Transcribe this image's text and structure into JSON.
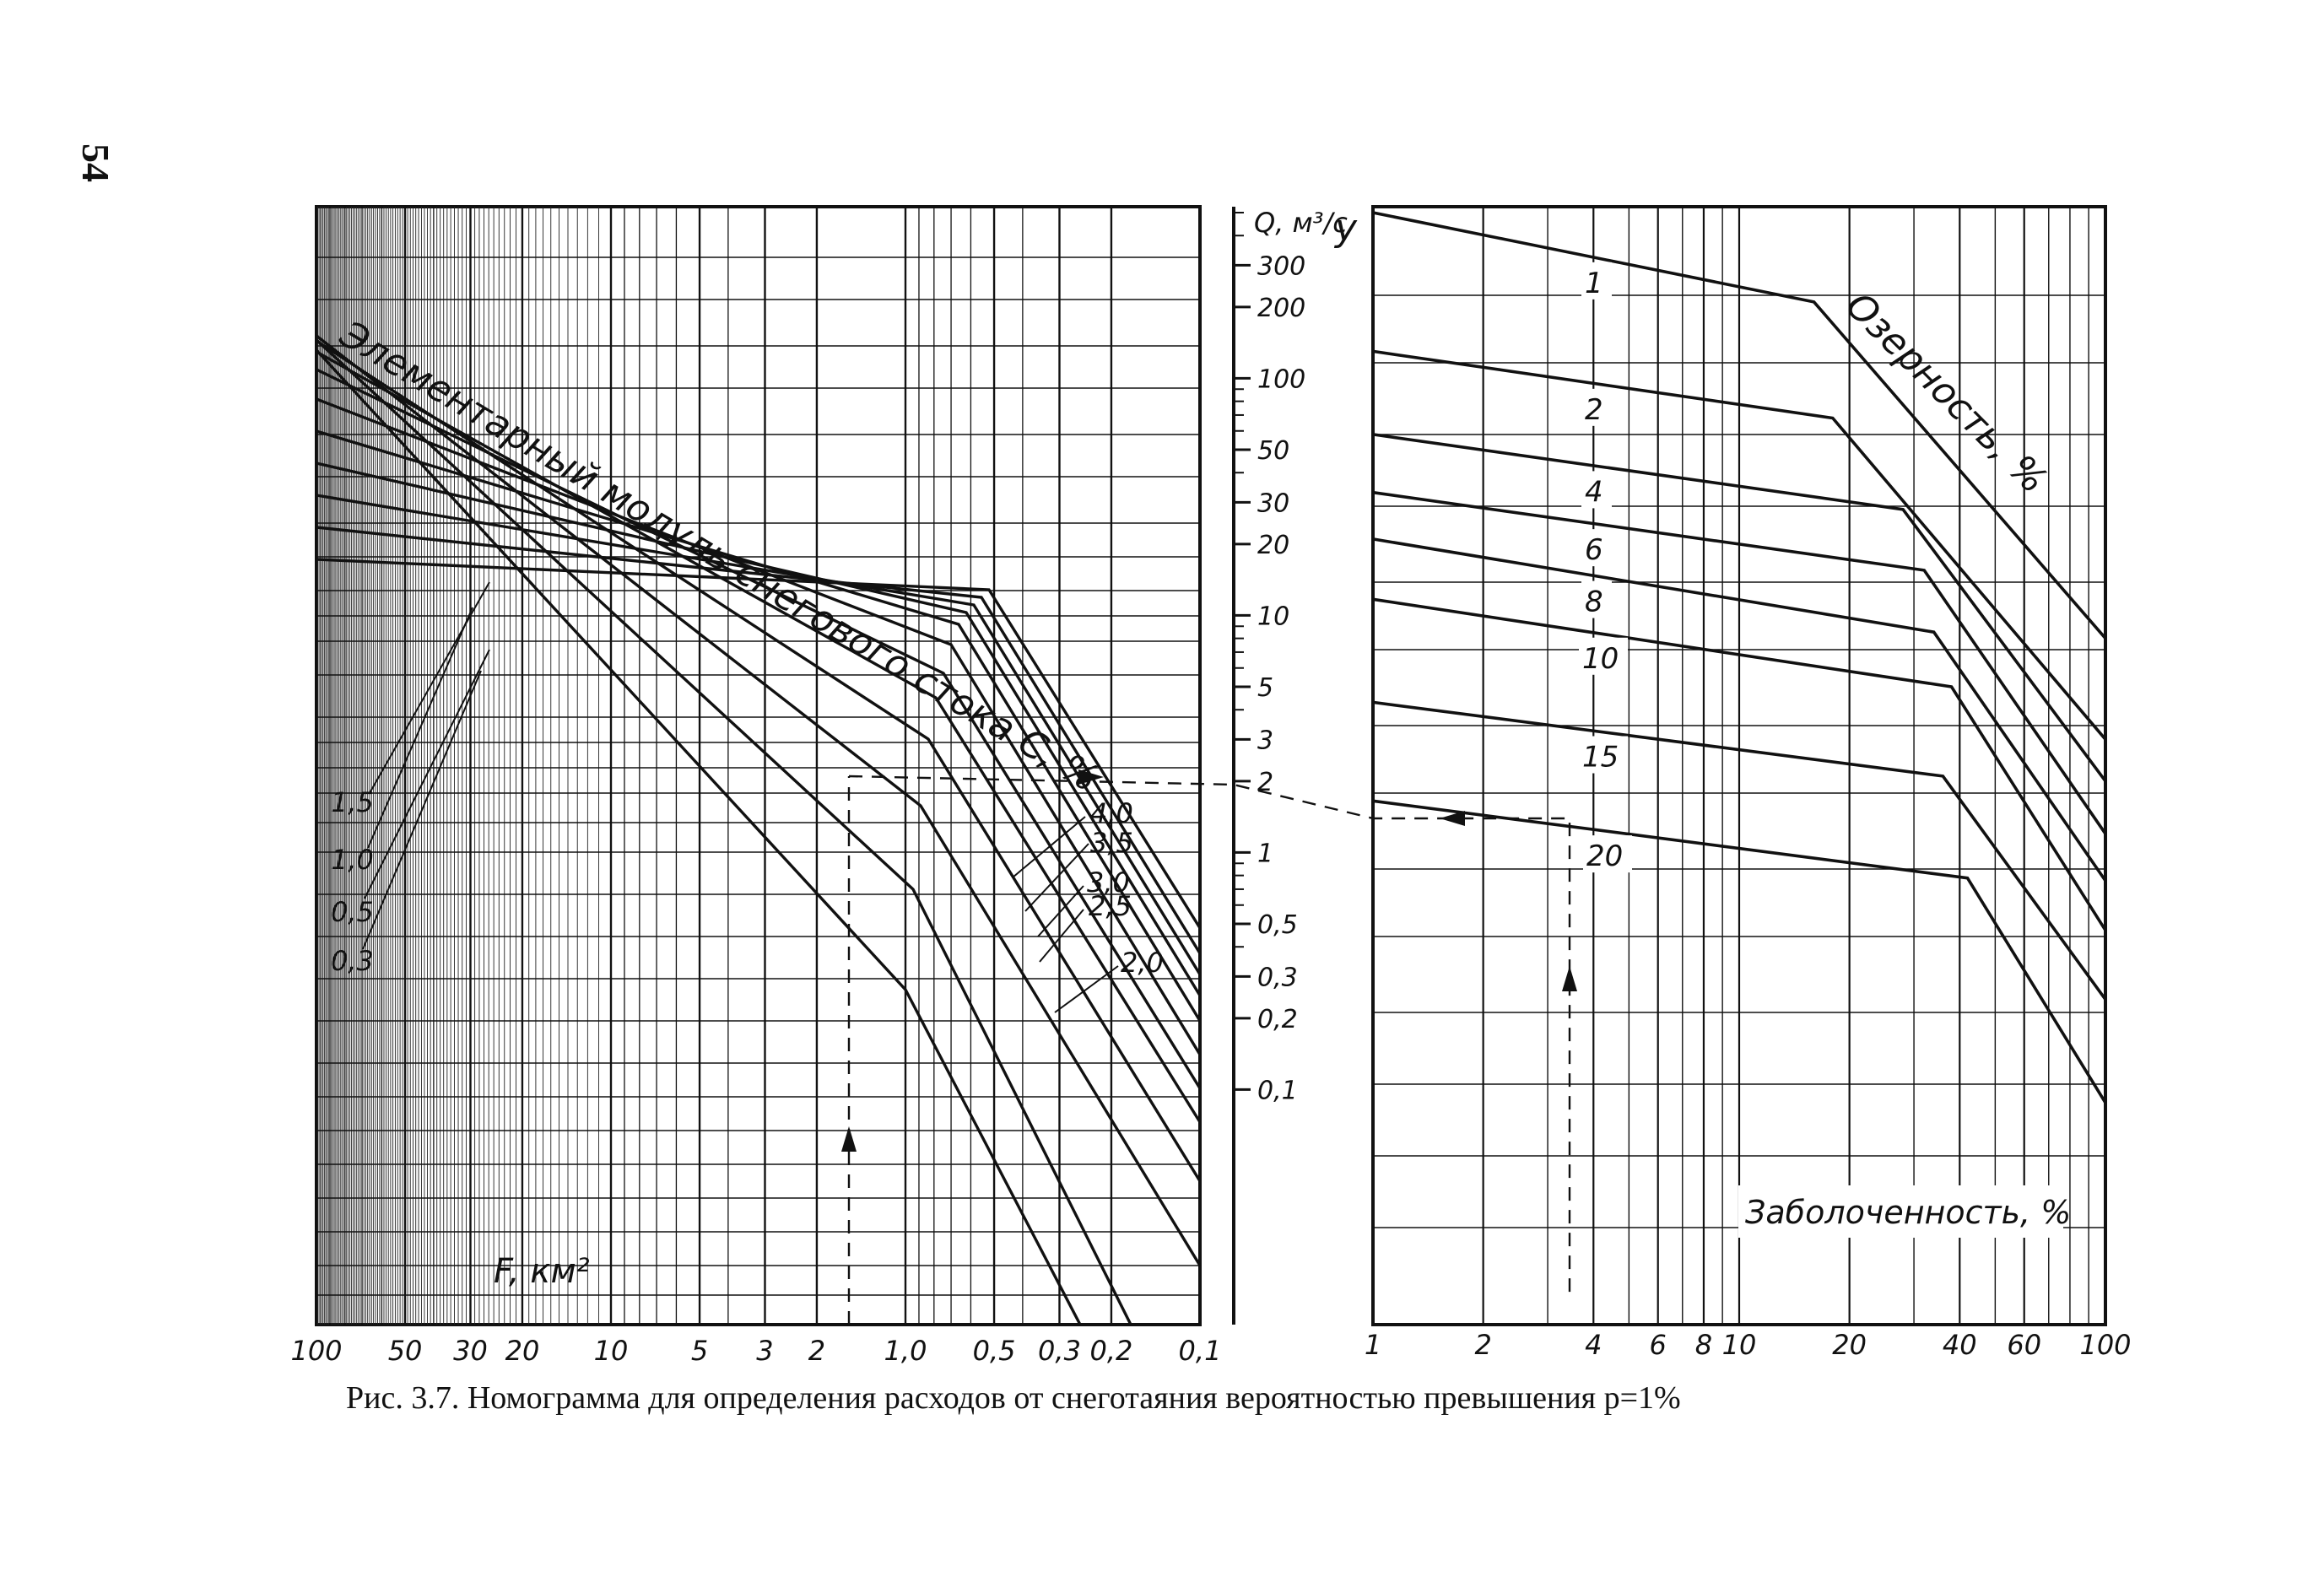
{
  "page_number": "54",
  "caption": "Рис. 3.7. Номограмма для определения расходов от снеготаяния вероятностью превышения p=1%",
  "chart_data": [
    {
      "type": "line",
      "title": "",
      "xlabel": "F, км²",
      "ylabel": "",
      "x_scale": "log",
      "x_reversed": true,
      "xlim": [
        100,
        0.1
      ],
      "x_tick_labels": [
        "100",
        "50",
        "30",
        "20",
        "10",
        "5",
        "3",
        "2",
        "1,0",
        "0,5",
        "0,3",
        "0,2",
        "0,1"
      ],
      "x_tick_values": [
        100,
        50,
        30,
        20,
        10,
        5,
        3,
        2,
        1.0,
        0.5,
        0.3,
        0.2,
        0.1
      ],
      "curve_family_label": "Элементарный модуль снегового стока C, %",
      "series_labels": [
        "0,3",
        "0,5",
        "1,0",
        "1,5",
        "2,0",
        "2,5",
        "3,0",
        "3,5",
        "4,0"
      ],
      "grid": true
    },
    {
      "type": "line",
      "title": "",
      "xlabel": "Заболоченность, %",
      "ylabel": "Q, м³/с",
      "y_axis_symbol": "y",
      "x_scale": "log",
      "xlim": [
        1,
        100
      ],
      "x_tick_labels": [
        "1",
        "2",
        "4",
        "6",
        "8",
        "10",
        "20",
        "40",
        "60",
        "100"
      ],
      "x_tick_values": [
        1,
        2,
        4,
        6,
        8,
        10,
        20,
        40,
        60,
        100
      ],
      "y_scale": "log",
      "ylim": [
        0.1,
        500
      ],
      "y_tick_labels": [
        "300",
        "200",
        "100",
        "50",
        "30",
        "20",
        "10",
        "5",
        "3",
        "2",
        "1",
        "0,5",
        "0,3",
        "0,2",
        "0,1"
      ],
      "y_tick_values": [
        300,
        200,
        100,
        50,
        30,
        20,
        10,
        5,
        3,
        2,
        1,
        0.5,
        0.3,
        0.2,
        0.1
      ],
      "curve_family_label": "Озерность, %",
      "series": [
        {
          "name": "1",
          "points": [
            [
              1,
              500
            ],
            [
              16,
              210
            ],
            [
              100,
              8.0
            ]
          ]
        },
        {
          "name": "2",
          "points": [
            [
              1,
              130
            ],
            [
              18,
              68
            ],
            [
              100,
              3.0
            ]
          ]
        },
        {
          "name": "4",
          "points": [
            [
              1,
              58
            ],
            [
              28,
              28
            ],
            [
              100,
              2.0
            ]
          ]
        },
        {
          "name": "6",
          "points": [
            [
              1,
              33
            ],
            [
              32,
              15.5
            ],
            [
              100,
              1.2
            ]
          ]
        },
        {
          "name": "8",
          "points": [
            [
              1,
              21
            ],
            [
              34,
              8.5
            ],
            [
              100,
              0.76
            ]
          ]
        },
        {
          "name": "10",
          "points": [
            [
              1,
              11.7
            ],
            [
              38,
              5.0
            ],
            [
              100,
              0.47
            ]
          ]
        },
        {
          "name": "15",
          "points": [
            [
              1,
              4.3
            ],
            [
              36,
              2.1
            ],
            [
              100,
              0.24
            ]
          ]
        },
        {
          "name": "20",
          "points": [
            [
              1,
              1.65
            ],
            [
              42,
              0.78
            ],
            [
              100,
              0.088
            ]
          ]
        }
      ],
      "grid": true
    }
  ]
}
